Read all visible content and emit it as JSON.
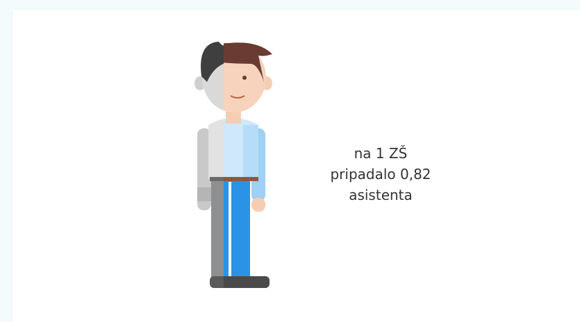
{
  "caption": [
    "na 1 ZŠ",
    "pripadalo 0,82",
    "asistenta"
  ]
}
